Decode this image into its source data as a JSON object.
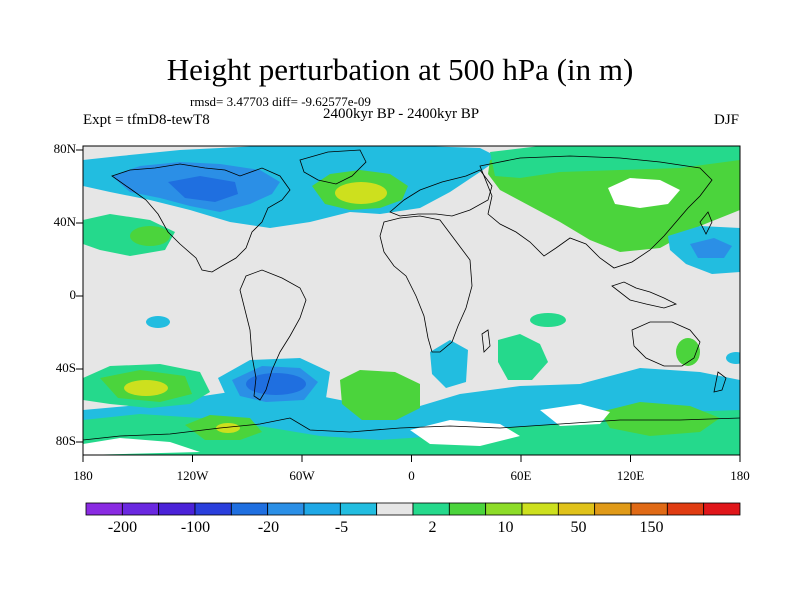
{
  "title": "Height perturbation at 500 hPa (in m)",
  "stats": "rmsd= 3.47703 diff= -9.62577e-09",
  "subtitle": "2400kyr BP - 2400kyr BP",
  "experiment": "Expt = tfmD8-tewT8",
  "season": "DJF",
  "lat_labels": [
    "80N",
    "40N",
    "0",
    "40S",
    "80S"
  ],
  "lon_labels": [
    "180",
    "120W",
    "60W",
    "0",
    "60E",
    "120E",
    "180"
  ],
  "colorbar": {
    "colors": [
      "#8a2be2",
      "#6a28e0",
      "#4b22d8",
      "#2a3fdc",
      "#1f6fe0",
      "#2b8fe6",
      "#1fa8e6",
      "#22bde0",
      "#e6e6e6",
      "#25d98c",
      "#4bd43c",
      "#8ddc28",
      "#cde01e",
      "#e0c21a",
      "#e09a18",
      "#e06a16",
      "#e03c12",
      "#e0161a"
    ],
    "labels": [
      "-200",
      "-100",
      "-20",
      "-5",
      "2",
      "10",
      "50",
      "150"
    ]
  },
  "colors": {
    "background": "#e6e6e6",
    "coastline": "#000000"
  }
}
